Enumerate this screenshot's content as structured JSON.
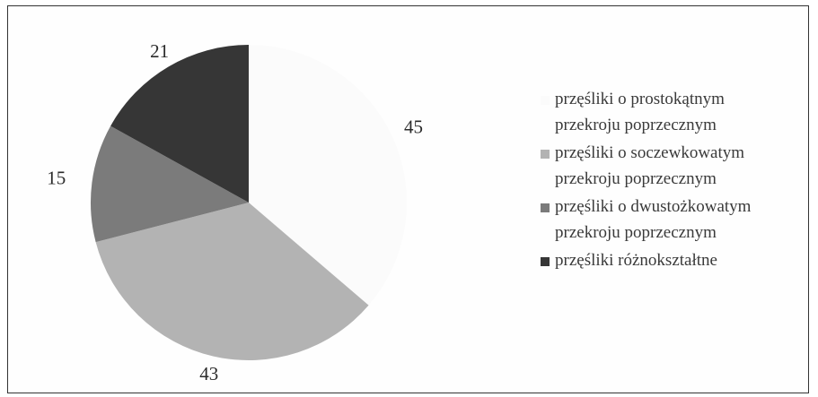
{
  "chart_data": {
    "type": "pie",
    "start_angle_deg": 0,
    "direction": "clockwise",
    "slices": [
      {
        "label": "przęśliki o prostokątnym\nprzekroju poprzecznym",
        "value": 45,
        "color": "#fbfbfb"
      },
      {
        "label": "przęśliki o soczewkowatym\nprzekroju poprzecznym",
        "value": 43,
        "color": "#b3b3b3"
      },
      {
        "label": "przęśliki o dwustożkowatym\nprzekroju poprzecznym",
        "value": 15,
        "color": "#7b7b7b"
      },
      {
        "label": "przęśliki różnokształtne",
        "value": 21,
        "color": "#363636"
      }
    ],
    "legend_position": "right"
  }
}
